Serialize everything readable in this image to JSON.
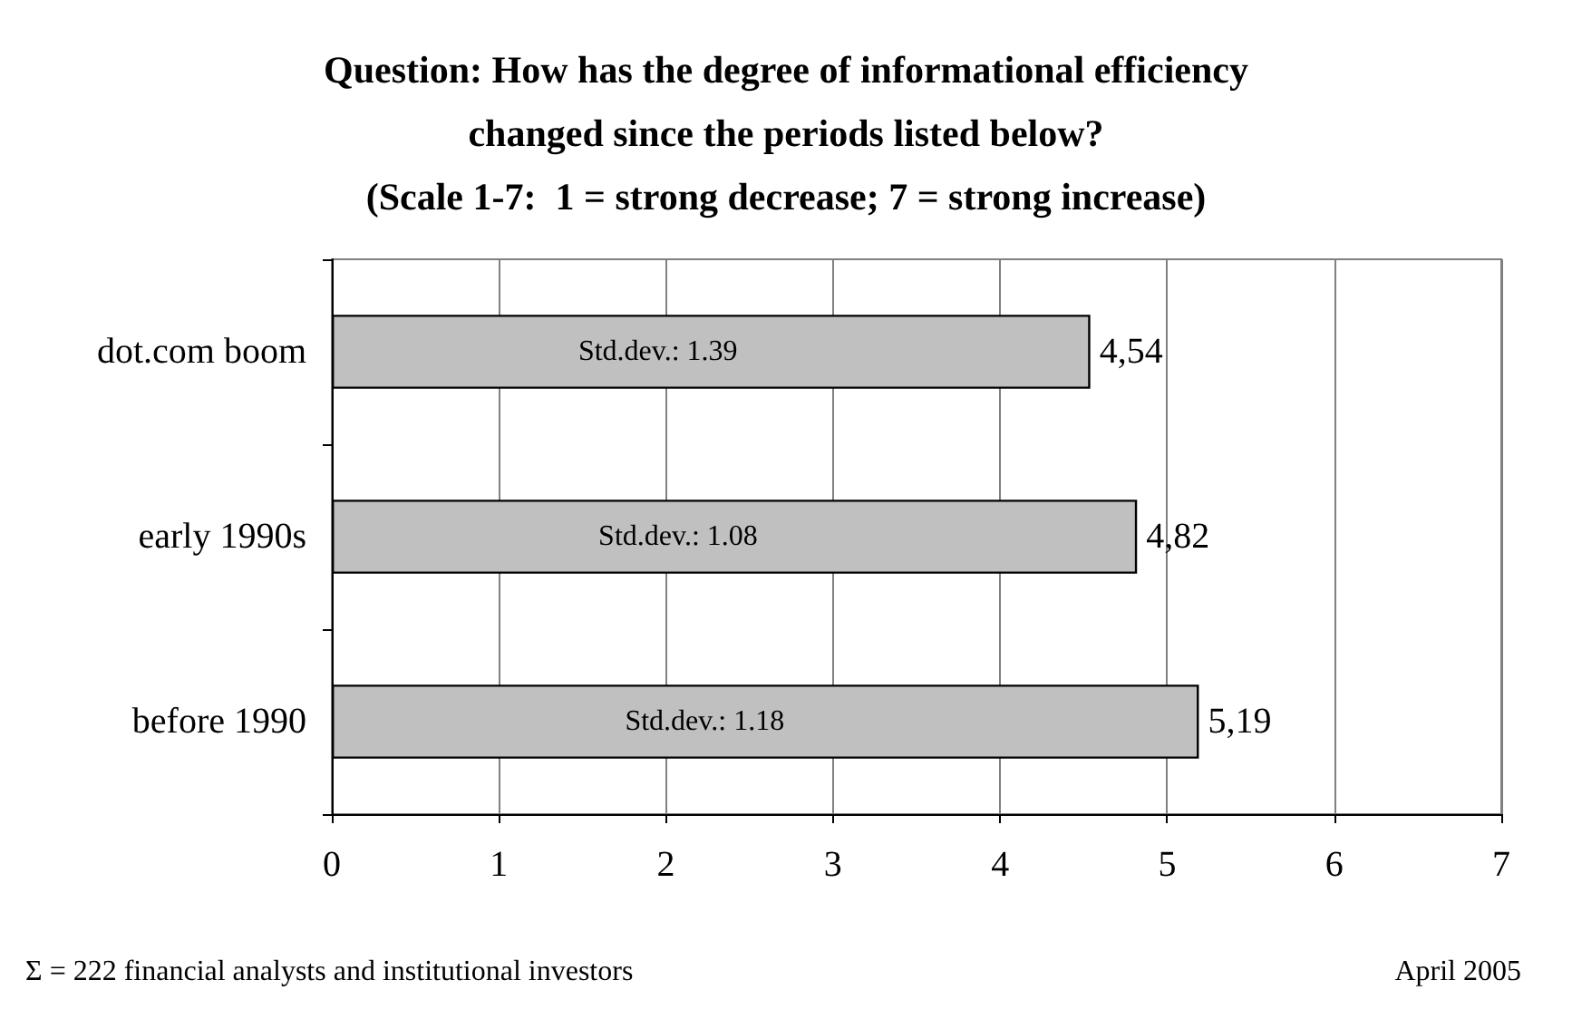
{
  "chart_data": {
    "type": "bar",
    "orientation": "horizontal",
    "title": "Question: How has the degree of informational efficiency\nchanged since the periods listed below?\n(Scale 1-7:  1 = strong decrease; 7 = strong increase)",
    "categories": [
      "dot.com boom",
      "early 1990s",
      "before 1990"
    ],
    "values": [
      4.54,
      4.82,
      5.19
    ],
    "value_labels": [
      "4,54",
      "4,82",
      "5,19"
    ],
    "color": "#c0c0c0",
    "xlim": [
      0,
      7
    ],
    "xticks": [
      0,
      1,
      2,
      3,
      4,
      5,
      6,
      7
    ],
    "grid": "x",
    "annotations": [
      "Std.dev.: 1.39",
      "Std.dev.: 1.08",
      "Std.dev.: 1.18",
      "Σ = 222 financial analysts and institutional investors",
      "April 2005"
    ]
  }
}
